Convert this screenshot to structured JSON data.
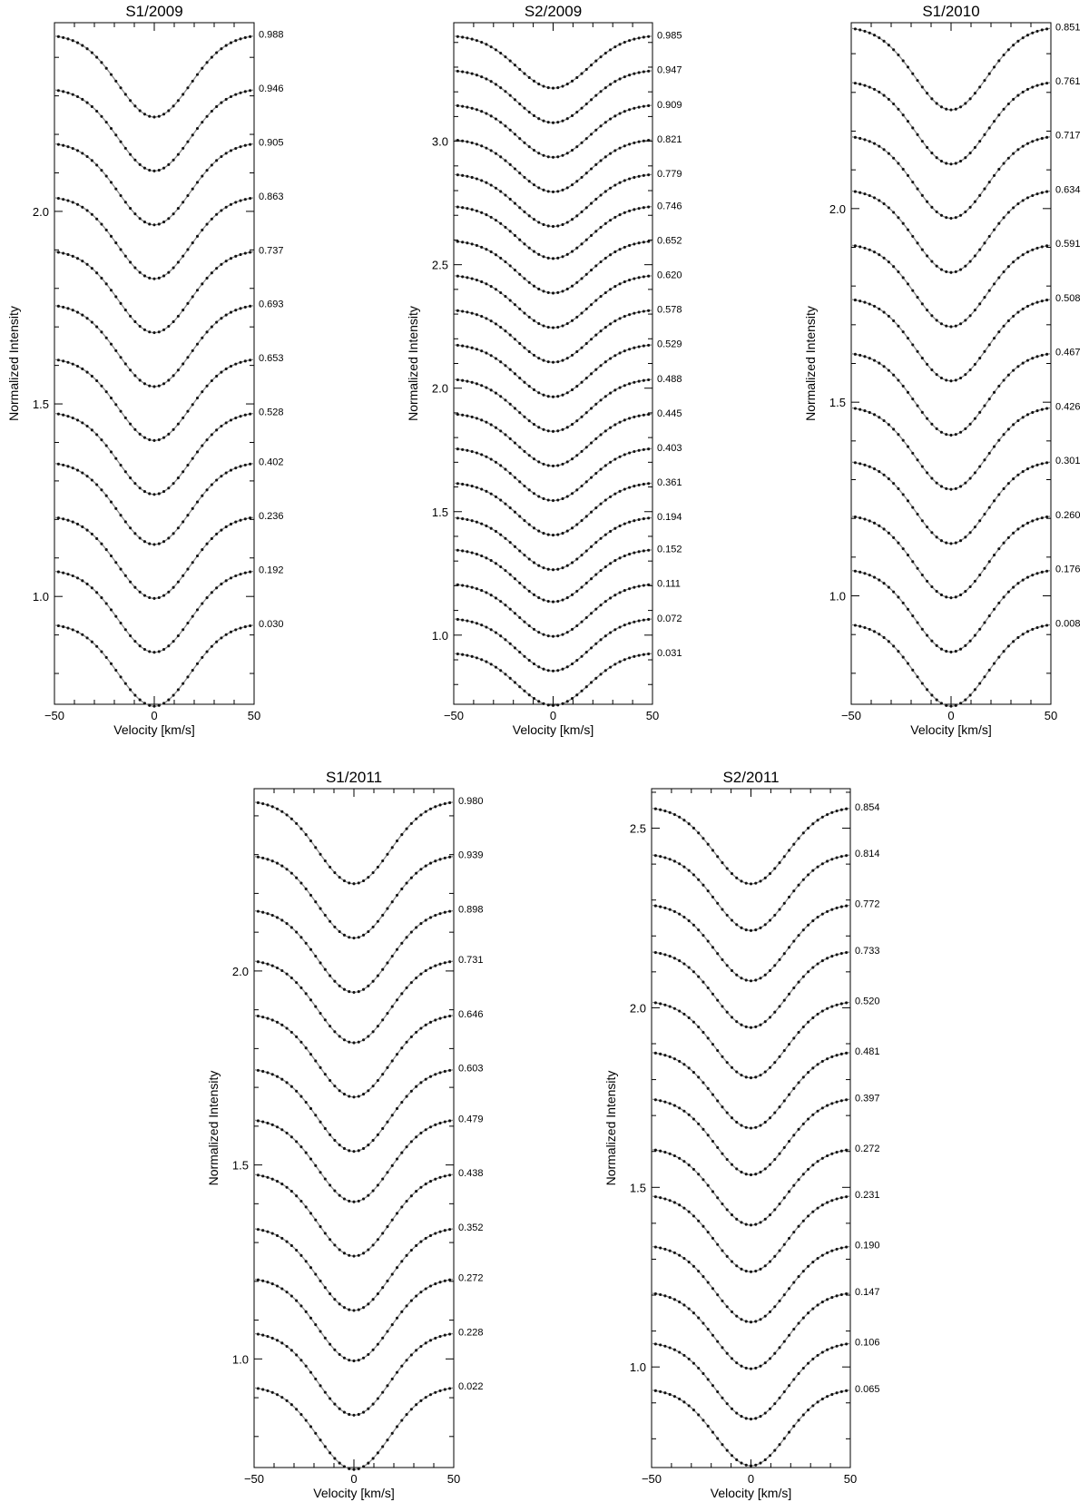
{
  "chart_data": [
    {
      "type": "line",
      "title": "S1/2009",
      "xlabel": "Velocity [km/s]",
      "ylabel": "Normalized Intensity",
      "xlim": [
        -50,
        50
      ],
      "ylim": [
        0.72,
        2.49
      ],
      "xticks": [
        "−50",
        "0",
        "50"
      ],
      "yticks": [
        {
          "v": 1.0,
          "label": "1.0"
        },
        {
          "v": 1.5,
          "label": "1.5"
        },
        {
          "v": 2.0,
          "label": "2.0"
        }
      ],
      "grid": false,
      "profile_depth": 0.215,
      "continuum_offsets": [
        0.93,
        1.07,
        1.21,
        1.35,
        1.48,
        1.62,
        1.76,
        1.9,
        2.04,
        2.18,
        2.32,
        2.46
      ],
      "phases": [
        "0.030",
        "0.192",
        "0.236",
        "0.402",
        "0.528",
        "0.653",
        "0.693",
        "0.737",
        "0.863",
        "0.905",
        "0.946",
        "0.988"
      ],
      "series": [
        {
          "name": "observed"
        },
        {
          "name": "model"
        }
      ]
    },
    {
      "type": "line",
      "title": "S2/2009",
      "xlabel": "Velocity [km/s]",
      "ylabel": "Normalized Intensity",
      "xlim": [
        -50,
        50
      ],
      "ylim": [
        0.72,
        3.48
      ],
      "xticks": [
        "−50",
        "0",
        "50"
      ],
      "yticks": [
        {
          "v": 1.0,
          "label": "1.0"
        },
        {
          "v": 1.5,
          "label": "1.5"
        },
        {
          "v": 2.0,
          "label": "2.0"
        },
        {
          "v": 2.5,
          "label": "2.5"
        },
        {
          "v": 3.0,
          "label": "3.0"
        }
      ],
      "grid": false,
      "profile_depth": 0.215,
      "continuum_offsets": [
        0.93,
        1.07,
        1.21,
        1.35,
        1.48,
        1.62,
        1.76,
        1.9,
        2.04,
        2.18,
        2.32,
        2.46,
        2.6,
        2.74,
        2.87,
        3.01,
        3.15,
        3.29,
        3.43
      ],
      "phases": [
        "0.031",
        "0.072",
        "0.111",
        "0.152",
        "0.194",
        "0.361",
        "0.403",
        "0.445",
        "0.488",
        "0.529",
        "0.578",
        "0.620",
        "0.652",
        "0.746",
        "0.779",
        "0.821",
        "0.909",
        "0.947",
        "0.985"
      ],
      "series": [
        {
          "name": "observed"
        },
        {
          "name": "model"
        }
      ]
    },
    {
      "type": "line",
      "title": "S1/2010",
      "xlabel": "Velocity [km/s]",
      "ylabel": "Normalized Intensity",
      "xlim": [
        -50,
        50
      ],
      "ylim": [
        0.72,
        2.48
      ],
      "xticks": [
        "−50",
        "0",
        "50"
      ],
      "yticks": [
        {
          "v": 1.0,
          "label": "1.0"
        },
        {
          "v": 1.5,
          "label": "1.5"
        },
        {
          "v": 2.0,
          "label": "2.0"
        }
      ],
      "grid": false,
      "profile_depth": 0.215,
      "continuum_offsets": [
        0.93,
        1.07,
        1.21,
        1.35,
        1.49,
        1.63,
        1.77,
        1.91,
        2.05,
        2.19,
        2.33,
        2.47
      ],
      "phases": [
        "0.008",
        "0.176",
        "0.260",
        "0.301",
        "0.426",
        "0.467",
        "0.508",
        "0.591",
        "0.634",
        "0.717",
        "0.761",
        "0.851"
      ],
      "series": [
        {
          "name": "observed"
        },
        {
          "name": "model"
        }
      ]
    },
    {
      "type": "line",
      "title": "S1/2011",
      "xlabel": "Velocity [km/s]",
      "ylabel": "Normalized Intensity",
      "xlim": [
        -50,
        50
      ],
      "ylim": [
        0.72,
        2.47
      ],
      "xticks": [
        "−50",
        "0",
        "50"
      ],
      "yticks": [
        {
          "v": 1.0,
          "label": "1.0"
        },
        {
          "v": 1.5,
          "label": "1.5"
        },
        {
          "v": 2.0,
          "label": "2.0"
        }
      ],
      "grid": false,
      "profile_depth": 0.215,
      "continuum_offsets": [
        0.93,
        1.07,
        1.21,
        1.34,
        1.48,
        1.62,
        1.75,
        1.89,
        2.03,
        2.16,
        2.3,
        2.44
      ],
      "phases": [
        "0.022",
        "0.228",
        "0.272",
        "0.352",
        "0.438",
        "0.479",
        "0.603",
        "0.646",
        "0.731",
        "0.898",
        "0.939",
        "0.980"
      ],
      "series": [
        {
          "name": "observed"
        },
        {
          "name": "model"
        }
      ]
    },
    {
      "type": "line",
      "title": "S2/2011",
      "xlabel": "Velocity [km/s]",
      "ylabel": "Normalized Intensity",
      "xlim": [
        -50,
        50
      ],
      "ylim": [
        0.72,
        2.61
      ],
      "xticks": [
        "−50",
        "0",
        "50"
      ],
      "yticks": [
        {
          "v": 1.0,
          "label": "1.0"
        },
        {
          "v": 1.5,
          "label": "1.5"
        },
        {
          "v": 2.0,
          "label": "2.0"
        },
        {
          "v": 2.5,
          "label": "2.5"
        }
      ],
      "grid": false,
      "profile_depth": 0.215,
      "continuum_offsets": [
        0.94,
        1.07,
        1.21,
        1.34,
        1.48,
        1.61,
        1.75,
        1.88,
        2.02,
        2.16,
        2.29,
        2.43,
        2.56
      ],
      "phases": [
        "0.065",
        "0.106",
        "0.147",
        "0.190",
        "0.231",
        "0.272",
        "0.397",
        "0.481",
        "0.520",
        "0.733",
        "0.772",
        "0.814",
        "0.854"
      ],
      "series": [
        {
          "name": "observed"
        },
        {
          "name": "model"
        }
      ]
    }
  ]
}
